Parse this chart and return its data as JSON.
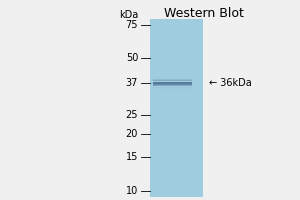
{
  "title": "Western Blot",
  "kda_label": "kDa",
  "ladder_marks": [
    75,
    50,
    37,
    25,
    20,
    15,
    10
  ],
  "band_kda": 37,
  "band_annotation": "← 36kDa",
  "lane_color": "#a0cce0",
  "bg_color": "#f0f0f0",
  "band_color": "#4a7090",
  "font_size_title": 9,
  "font_size_labels": 7,
  "font_size_kda": 7,
  "font_size_annot": 7
}
